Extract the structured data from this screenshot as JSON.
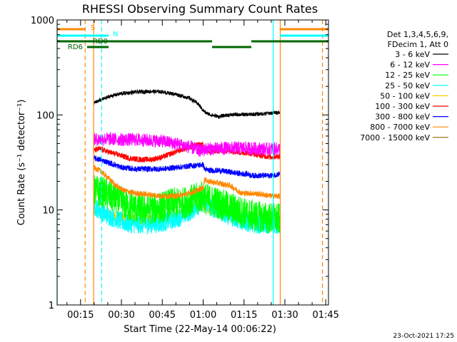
{
  "chart_data": {
    "type": "line",
    "title": "RHESSI Observing Summary Count Rates",
    "xlabel": "Start Time (22-May-14 00:06:22)",
    "ylabel": "Count Rate (s⁻¹ detector⁻¹)",
    "yscale": "log",
    "ylim": [
      1,
      1000
    ],
    "xlim_minutes": [
      6.4,
      106
    ],
    "x_ticks": [
      {
        "label": "00:15",
        "minutes": 15
      },
      {
        "label": "00:30",
        "minutes": 30
      },
      {
        "label": "00:45",
        "minutes": 45
      },
      {
        "label": "01:00",
        "minutes": 60
      },
      {
        "label": "01:15",
        "minutes": 75
      },
      {
        "label": "01:30",
        "minutes": 90
      },
      {
        "label": "01:45",
        "minutes": 105
      }
    ],
    "y_ticks": [
      {
        "label": "1",
        "value": 1
      },
      {
        "label": "10",
        "value": 10
      },
      {
        "label": "100",
        "value": 100
      },
      {
        "label": "1000",
        "value": 1000
      }
    ],
    "legend_header": [
      "Det 1,3,4,5,6,9,",
      "FDecim 1, Att 0"
    ],
    "legend_position": "right",
    "series": [
      {
        "name": "3 - 6 keV",
        "color": "#000000",
        "noise": 0.02,
        "points": [
          [
            19.8,
            133
          ],
          [
            22,
            142
          ],
          [
            26,
            158
          ],
          [
            30,
            168
          ],
          [
            35,
            174
          ],
          [
            40,
            177
          ],
          [
            45,
            175
          ],
          [
            50,
            165
          ],
          [
            55,
            150
          ],
          [
            58,
            132
          ],
          [
            60,
            112
          ],
          [
            61,
            105
          ],
          [
            63,
            100
          ],
          [
            65,
            97
          ],
          [
            66,
            96
          ],
          [
            68,
            99
          ],
          [
            72,
            101
          ],
          [
            76,
            101
          ],
          [
            80,
            102
          ],
          [
            84,
            104
          ],
          [
            87,
            106
          ],
          [
            88.2,
            106
          ]
        ]
      },
      {
        "name": "6 - 12 keV",
        "color": "#ff00ff",
        "noise": 0.07,
        "points": [
          [
            19.8,
            55
          ],
          [
            25,
            56
          ],
          [
            30,
            55
          ],
          [
            35,
            55
          ],
          [
            40,
            54
          ],
          [
            45,
            53
          ],
          [
            50,
            50
          ],
          [
            55,
            46
          ],
          [
            58,
            43
          ],
          [
            60,
            42
          ],
          [
            61,
            44
          ],
          [
            65,
            44
          ],
          [
            70,
            45
          ],
          [
            75,
            45
          ],
          [
            80,
            44
          ],
          [
            84,
            44
          ],
          [
            87,
            44
          ],
          [
            88.2,
            44
          ]
        ]
      },
      {
        "name": "12 - 25 keV",
        "color": "#00ff00",
        "noise": 0.17,
        "points": [
          [
            19.8,
            16
          ],
          [
            24,
            15
          ],
          [
            28,
            13
          ],
          [
            32,
            11
          ],
          [
            38,
            10
          ],
          [
            44,
            10.5
          ],
          [
            48,
            11.5
          ],
          [
            53,
            12
          ],
          [
            57,
            13
          ],
          [
            60,
            14
          ],
          [
            61,
            13
          ],
          [
            65,
            12
          ],
          [
            68,
            11
          ],
          [
            72,
            10
          ],
          [
            76,
            9
          ],
          [
            80,
            8.5
          ],
          [
            84,
            8.2
          ],
          [
            88.2,
            8
          ]
        ]
      },
      {
        "name": "25 - 50 keV",
        "color": "#00ffff",
        "noise": 0.1,
        "points": [
          [
            19.8,
            11
          ],
          [
            24,
            9
          ],
          [
            28,
            8
          ],
          [
            32,
            7.2
          ],
          [
            38,
            7
          ],
          [
            44,
            7.2
          ],
          [
            50,
            8
          ],
          [
            55,
            9.5
          ],
          [
            58,
            11
          ],
          [
            60,
            12
          ],
          [
            62,
            11
          ],
          [
            65,
            10
          ],
          [
            70,
            8.5
          ],
          [
            75,
            7.5
          ],
          [
            80,
            7
          ],
          [
            85,
            7
          ],
          [
            88.2,
            7
          ]
        ]
      },
      {
        "name": "50 - 100 keV",
        "color": "#ffcc00",
        "noise": 0.06,
        "points": [
          [
            19.8,
            10
          ],
          [
            22,
            9.5
          ],
          [
            24,
            9.2
          ],
          [
            28,
            8.5
          ],
          [
            32,
            8
          ],
          [
            36,
            7.8
          ],
          [
            40,
            7.8
          ],
          [
            44,
            7.9
          ],
          [
            48,
            8.3
          ],
          [
            52,
            9
          ],
          [
            56,
            10
          ],
          [
            60,
            11
          ],
          [
            62,
            10.5
          ],
          [
            65,
            9.5
          ],
          [
            70,
            8.5
          ],
          [
            74,
            8
          ],
          [
            78,
            7.8
          ],
          [
            82,
            7.6
          ],
          [
            85,
            7.5
          ],
          [
            88.2,
            7.5
          ]
        ]
      },
      {
        "name": "100 - 300 keV",
        "color": "#ff0000",
        "noise": 0.03,
        "points": [
          [
            19.8,
            42
          ],
          [
            22,
            44
          ],
          [
            25,
            41
          ],
          [
            29,
            38
          ],
          [
            33,
            35
          ],
          [
            37,
            34
          ],
          [
            41,
            34
          ],
          [
            45,
            36
          ],
          [
            49,
            40
          ],
          [
            53,
            44
          ],
          [
            57,
            48
          ],
          [
            60,
            49
          ],
          [
            60.5,
            42
          ],
          [
            62,
            41
          ],
          [
            66,
            42
          ],
          [
            70,
            42
          ],
          [
            74,
            40
          ],
          [
            76,
            40
          ],
          [
            78,
            39
          ],
          [
            82,
            37
          ],
          [
            85,
            36
          ],
          [
            88.2,
            37
          ]
        ]
      },
      {
        "name": "300 - 800 keV",
        "color": "#0000ff",
        "noise": 0.03,
        "points": [
          [
            19.8,
            35
          ],
          [
            22,
            34
          ],
          [
            26,
            31
          ],
          [
            30,
            28
          ],
          [
            35,
            27
          ],
          [
            40,
            27
          ],
          [
            45,
            27
          ],
          [
            50,
            28
          ],
          [
            55,
            29
          ],
          [
            60,
            30
          ],
          [
            60.5,
            27
          ],
          [
            62,
            26
          ],
          [
            66,
            26
          ],
          [
            70,
            25
          ],
          [
            74,
            24
          ],
          [
            76,
            24
          ],
          [
            78,
            23
          ],
          [
            82,
            23
          ],
          [
            85,
            23
          ],
          [
            88.2,
            24
          ]
        ]
      },
      {
        "name": "800 - 7000 keV",
        "color": "#ff8800",
        "noise": 0.03,
        "points": [
          [
            19.8,
            28
          ],
          [
            22,
            26
          ],
          [
            25,
            22
          ],
          [
            28,
            18
          ],
          [
            31,
            16
          ],
          [
            35,
            15
          ],
          [
            40,
            14.5
          ],
          [
            45,
            14
          ],
          [
            50,
            14
          ],
          [
            55,
            15
          ],
          [
            60,
            17
          ],
          [
            60.5,
            21
          ],
          [
            62,
            20
          ],
          [
            66,
            19
          ],
          [
            70,
            18
          ],
          [
            74,
            15
          ],
          [
            76,
            15
          ],
          [
            78,
            15
          ],
          [
            82,
            14.5
          ],
          [
            85,
            14
          ],
          [
            88.2,
            14
          ]
        ]
      },
      {
        "name": "7000 - 15000 keV",
        "color": "#996600",
        "noise": 0.0,
        "points": []
      }
    ],
    "annotations": {
      "attenuator_labels": [
        "S",
        "N",
        "RD0",
        "RD6"
      ],
      "solid_vlines": [
        {
          "minutes": 6.4,
          "color": "#00ffff"
        },
        {
          "minutes": 19.8,
          "color": "#ff8800"
        },
        {
          "minutes": 85.7,
          "color": "#00ffff"
        },
        {
          "minutes": 88.3,
          "color": "#ff8800"
        }
      ],
      "dashed_vlines": [
        {
          "minutes": 16.7,
          "color": "#ff8800"
        },
        {
          "minutes": 22.7,
          "color": "#00ffff"
        },
        {
          "minutes": 103.8,
          "color": "#ff8800"
        }
      ]
    }
  },
  "footer": {
    "timestamp": "23-Oct-2021 17:25"
  }
}
